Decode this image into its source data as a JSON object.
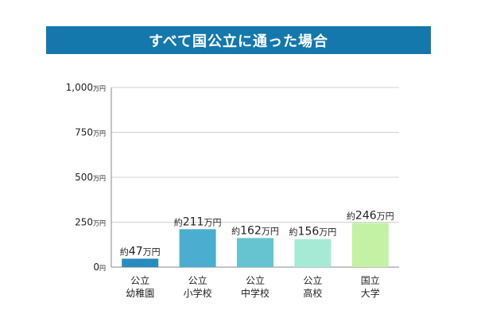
{
  "title": "すべて国公立に通った場合",
  "chart_data": {
    "type": "bar",
    "title": "すべて国公立に通った場合",
    "categories": [
      [
        "公立",
        "幼稚園"
      ],
      [
        "公立",
        "小学校"
      ],
      [
        "公立",
        "中学校"
      ],
      [
        "公立",
        "高校"
      ],
      [
        "国立",
        "大学"
      ]
    ],
    "values": [
      47,
      211,
      162,
      156,
      246
    ],
    "unit": "万円",
    "data_labels": [
      {
        "prefix": "約",
        "number": "47",
        "suffix": "万円"
      },
      {
        "prefix": "約",
        "number": "211",
        "suffix": "万円"
      },
      {
        "prefix": "約",
        "number": "162",
        "suffix": "万円"
      },
      {
        "prefix": "約",
        "number": "156",
        "suffix": "万円"
      },
      {
        "prefix": "約",
        "number": "246",
        "suffix": "万円"
      }
    ],
    "bar_colors": [
      "#2a8cbe",
      "#4badd0",
      "#66c4d0",
      "#a6ead6",
      "#c4f1a4"
    ],
    "ylim": [
      0,
      1000
    ],
    "yticks": [
      {
        "value": 0,
        "number": "0",
        "unit": "円"
      },
      {
        "value": 250,
        "number": "250",
        "unit": "万円"
      },
      {
        "value": 500,
        "number": "500",
        "unit": "万円"
      },
      {
        "value": 750,
        "number": "750",
        "unit": "万円"
      },
      {
        "value": 1000,
        "number": "1,000",
        "unit": "万円"
      }
    ],
    "grid": true,
    "xlabel": "",
    "ylabel": ""
  }
}
